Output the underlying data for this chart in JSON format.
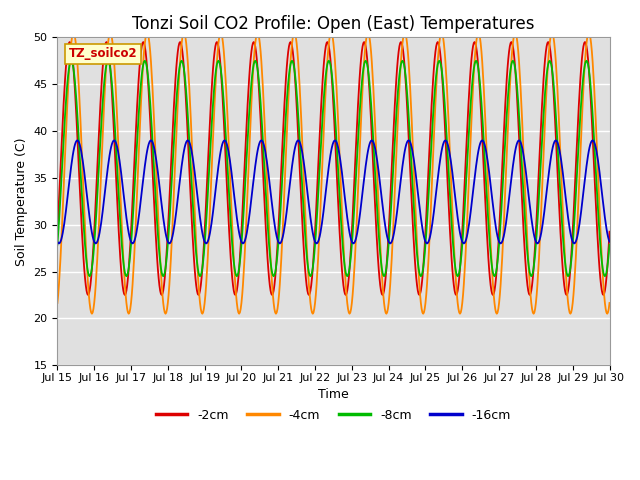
{
  "title": "Tonzi Soil CO2 Profile: Open (East) Temperatures",
  "xlabel": "Time",
  "ylabel": "Soil Temperature (C)",
  "ylim": [
    15,
    50
  ],
  "xlim_days": [
    15,
    30
  ],
  "x_ticks": [
    15,
    16,
    17,
    18,
    19,
    20,
    21,
    22,
    23,
    24,
    25,
    26,
    27,
    28,
    29,
    30
  ],
  "x_tick_labels": [
    "Jul 15",
    "Jul 16",
    "Jul 17",
    "Jul 18",
    "Jul 19",
    "Jul 20",
    "Jul 21",
    "Jul 22",
    "Jul 23",
    "Jul 24",
    "Jul 25",
    "Jul 26",
    "Jul 27",
    "Jul 28",
    "Jul 29",
    "Jul 30"
  ],
  "series": [
    {
      "label": "-2cm",
      "color": "#dd0000",
      "amplitude": 13.5,
      "mean": 36.0,
      "phase_hours": 2.0,
      "clip_top": 50.0
    },
    {
      "label": "-4cm",
      "color": "#ff8800",
      "amplitude": 15.0,
      "mean": 35.5,
      "phase_hours": 4.5,
      "clip_top": 50.5
    },
    {
      "label": "-8cm",
      "color": "#00bb00",
      "amplitude": 11.5,
      "mean": 36.0,
      "phase_hours": 3.0,
      "clip_top": 50.0
    },
    {
      "label": "-16cm",
      "color": "#0000cc",
      "amplitude": 5.5,
      "mean": 33.5,
      "phase_hours": 7.0,
      "clip_top": 50.0
    }
  ],
  "legend_label_box": "TZ_soilco2",
  "plot_bg_color": "#e0e0e0",
  "fig_bg_color": "#ffffff",
  "grid_color": "#ffffff",
  "linewidth": 1.3,
  "title_fontsize": 12,
  "axis_label_fontsize": 9,
  "tick_fontsize": 8
}
